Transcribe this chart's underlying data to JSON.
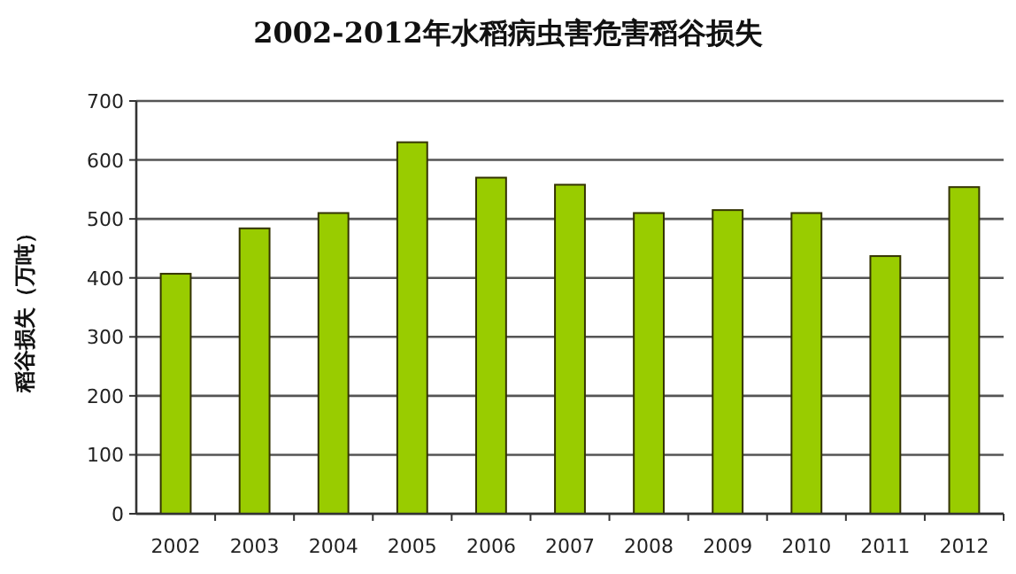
{
  "chart_data": {
    "type": "bar",
    "title": "2002-2012年水稻病虫害危害稻谷损失",
    "ylabel": "稻谷损失（万吨）",
    "categories": [
      "2002",
      "2003",
      "2004",
      "2005",
      "2006",
      "2007",
      "2008",
      "2009",
      "2010",
      "2011",
      "2012"
    ],
    "values": [
      407,
      484,
      510,
      630,
      570,
      558,
      510,
      515,
      510,
      437,
      554
    ],
    "color": "#99cc00",
    "ylim": [
      0,
      700
    ],
    "yticks": [
      0,
      100,
      200,
      300,
      400,
      500,
      600,
      700
    ],
    "grid": "y"
  }
}
